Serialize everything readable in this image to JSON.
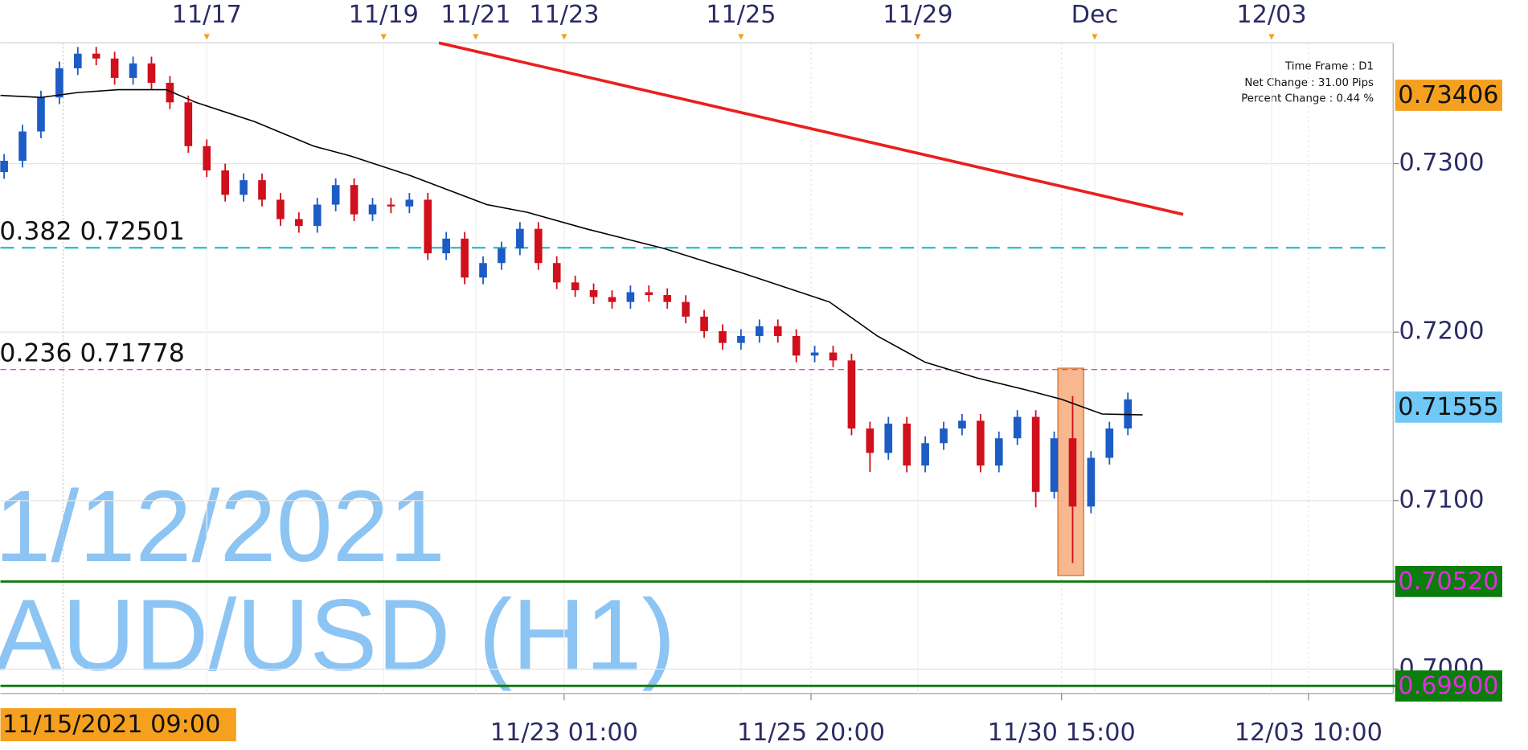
{
  "chart_data": {
    "type": "candlestick",
    "xlim": [
      0,
      378
    ],
    "ylim": [
      0.69855,
      0.73717
    ],
    "yticks": [
      {
        "value": 0.73,
        "label": "0.7300"
      },
      {
        "value": 0.72,
        "label": "0.7200"
      },
      {
        "value": 0.71,
        "label": "0.7100"
      },
      {
        "value": 0.7,
        "label": "0.7000"
      }
    ],
    "xticks_top": [
      {
        "value": 56,
        "label": "11/17"
      },
      {
        "value": 104,
        "label": "11/19"
      },
      {
        "value": 129,
        "label": "11/21"
      },
      {
        "value": 153,
        "label": "11/23"
      },
      {
        "value": 201,
        "label": "11/25"
      },
      {
        "value": 249,
        "label": "11/29"
      },
      {
        "value": 297,
        "label": "Dec"
      },
      {
        "value": 345,
        "label": "12/03"
      }
    ],
    "xticks": [
      {
        "value": 153,
        "label": "11/23 01:00"
      },
      {
        "value": 220,
        "label": "11/25 20:00"
      },
      {
        "value": 288,
        "label": "11/30 15:00"
      },
      {
        "value": 355,
        "label": "12/03 10:00"
      }
    ],
    "cursor": {
      "x": 17,
      "label": "11/15/2021 09:00"
    },
    "grid": true,
    "up_color": "#1c5cc4",
    "down_color": "#d0101c",
    "x": [
      1,
      6,
      11,
      16,
      21,
      26,
      31,
      36,
      41,
      46,
      51,
      56,
      61,
      66,
      71,
      76,
      81,
      86,
      91,
      96,
      101,
      106,
      111,
      116,
      121,
      126,
      131,
      136,
      141,
      146,
      151,
      156,
      161,
      166,
      171,
      176,
      181,
      186,
      191,
      196,
      201,
      206,
      211,
      216,
      221,
      226,
      231,
      236,
      241,
      246,
      251,
      256,
      261,
      266,
      271,
      276,
      281,
      286,
      291,
      296,
      301,
      306
    ],
    "open": [
      0.7295,
      0.73017,
      0.73191,
      0.73393,
      0.73566,
      0.73653,
      0.73624,
      0.73509,
      0.73595,
      0.7348,
      0.73364,
      0.73104,
      0.7296,
      0.72815,
      0.72902,
      0.72786,
      0.72671,
      0.7263,
      0.72757,
      0.72873,
      0.72699,
      0.72757,
      0.72746,
      0.72786,
      0.72468,
      0.72555,
      0.72324,
      0.7241,
      0.72497,
      0.72613,
      0.7241,
      0.72295,
      0.72249,
      0.72208,
      0.72179,
      0.72237,
      0.7222,
      0.72179,
      0.72092,
      0.72006,
      0.71936,
      0.71977,
      0.72035,
      0.71977,
      0.71861,
      0.71879,
      0.71832,
      0.71428,
      0.71283,
      0.71457,
      0.71208,
      0.71341,
      0.71428,
      0.71474,
      0.71208,
      0.7137,
      0.71497,
      0.71052,
      0.7137,
      0.70965,
      0.71254,
      0.71428
    ],
    "high": [
      0.73057,
      0.73231,
      0.73433,
      0.73606,
      0.73693,
      0.73693,
      0.73664,
      0.73635,
      0.73635,
      0.7352,
      0.73404,
      0.73144,
      0.73,
      0.72942,
      0.72942,
      0.72826,
      0.72711,
      0.72797,
      0.72913,
      0.72913,
      0.72797,
      0.72797,
      0.72826,
      0.72826,
      0.72595,
      0.72595,
      0.7245,
      0.72537,
      0.72653,
      0.72653,
      0.7245,
      0.72335,
      0.72289,
      0.72248,
      0.72277,
      0.72277,
      0.7226,
      0.72219,
      0.72132,
      0.72046,
      0.72017,
      0.72075,
      0.72075,
      0.72017,
      0.71919,
      0.71919,
      0.71872,
      0.71468,
      0.71497,
      0.71497,
      0.71381,
      0.71468,
      0.71514,
      0.71514,
      0.7141,
      0.71537,
      0.71537,
      0.7141,
      0.7162,
      0.71294,
      0.71468,
      0.71641
    ],
    "low": [
      0.7291,
      0.72977,
      0.73151,
      0.73353,
      0.73526,
      0.73584,
      0.73469,
      0.73469,
      0.7344,
      0.73324,
      0.73064,
      0.7292,
      0.72775,
      0.72775,
      0.72746,
      0.72631,
      0.7259,
      0.7259,
      0.72717,
      0.72659,
      0.72659,
      0.72706,
      0.72706,
      0.72428,
      0.72428,
      0.72284,
      0.72284,
      0.7237,
      0.72457,
      0.7237,
      0.72255,
      0.72209,
      0.72168,
      0.72139,
      0.72139,
      0.7218,
      0.72139,
      0.72052,
      0.71966,
      0.71896,
      0.71896,
      0.71937,
      0.71937,
      0.71821,
      0.71821,
      0.71792,
      0.71388,
      0.7117,
      0.71243,
      0.71168,
      0.71168,
      0.71301,
      0.71388,
      0.71168,
      0.71168,
      0.7133,
      0.7096,
      0.71012,
      0.7063,
      0.70925,
      0.71214,
      0.71388
    ],
    "close": [
      0.73017,
      0.73191,
      0.73393,
      0.73566,
      0.73653,
      0.73624,
      0.73509,
      0.73595,
      0.7348,
      0.73364,
      0.73104,
      0.7296,
      0.72815,
      0.72902,
      0.72786,
      0.72671,
      0.7263,
      0.72757,
      0.72873,
      0.72699,
      0.72757,
      0.72746,
      0.72786,
      0.72468,
      0.72555,
      0.72324,
      0.7241,
      0.72497,
      0.72613,
      0.7241,
      0.72295,
      0.72249,
      0.72208,
      0.72179,
      0.72237,
      0.7222,
      0.72179,
      0.72092,
      0.72006,
      0.71936,
      0.71977,
      0.72035,
      0.71977,
      0.71861,
      0.71879,
      0.71832,
      0.71428,
      0.71283,
      0.71457,
      0.71208,
      0.71341,
      0.71428,
      0.71474,
      0.71208,
      0.7137,
      0.71497,
      0.71052,
      0.7137,
      0.70965,
      0.71254,
      0.71428,
      0.71601
    ],
    "moving_average": {
      "color": "#000000",
      "x": [
        0,
        11,
        21,
        32,
        45,
        53,
        69,
        85,
        95,
        111,
        132,
        143,
        159,
        180,
        201,
        225,
        238,
        251,
        265,
        278,
        288,
        299,
        310
      ],
      "values": [
        0.73405,
        0.73393,
        0.73422,
        0.73439,
        0.73439,
        0.73364,
        0.73249,
        0.73104,
        0.73046,
        0.72931,
        0.72757,
        0.72711,
        0.72613,
        0.72497,
        0.72353,
        0.72179,
        0.71977,
        0.71821,
        0.71728,
        0.71659,
        0.71601,
        0.71514,
        0.71509
      ]
    },
    "trend_line": {
      "color": "#e8201c",
      "x": [
        119,
        321
      ],
      "values": [
        0.73717,
        0.72699
      ]
    },
    "highlight": {
      "color": "#f5a06a",
      "x": [
        287,
        294
      ],
      "y": [
        0.70555,
        0.71786
      ]
    },
    "fib_levels": [
      {
        "ratio": 0.382,
        "value": 0.72501,
        "color": "#2ec4c4"
      },
      {
        "ratio": 0.236,
        "value": 0.71778,
        "color": "#e040e0"
      }
    ],
    "support_levels": [
      {
        "value": 0.7052,
        "label": "0.70520"
      },
      {
        "value": 0.699,
        "label": "0.69900"
      }
    ],
    "price_markers": [
      {
        "value": 0.73406,
        "color": "#f5a01e"
      },
      {
        "value": 0.71555,
        "color": "#6fc8f5"
      }
    ],
    "watermark": [
      "1/12/2021",
      "AUD/USD (H1)"
    ],
    "info": [
      "Time Frame : D1",
      "Net Change : 31.00 Pips",
      "Percent Change : 0.44 %"
    ]
  }
}
